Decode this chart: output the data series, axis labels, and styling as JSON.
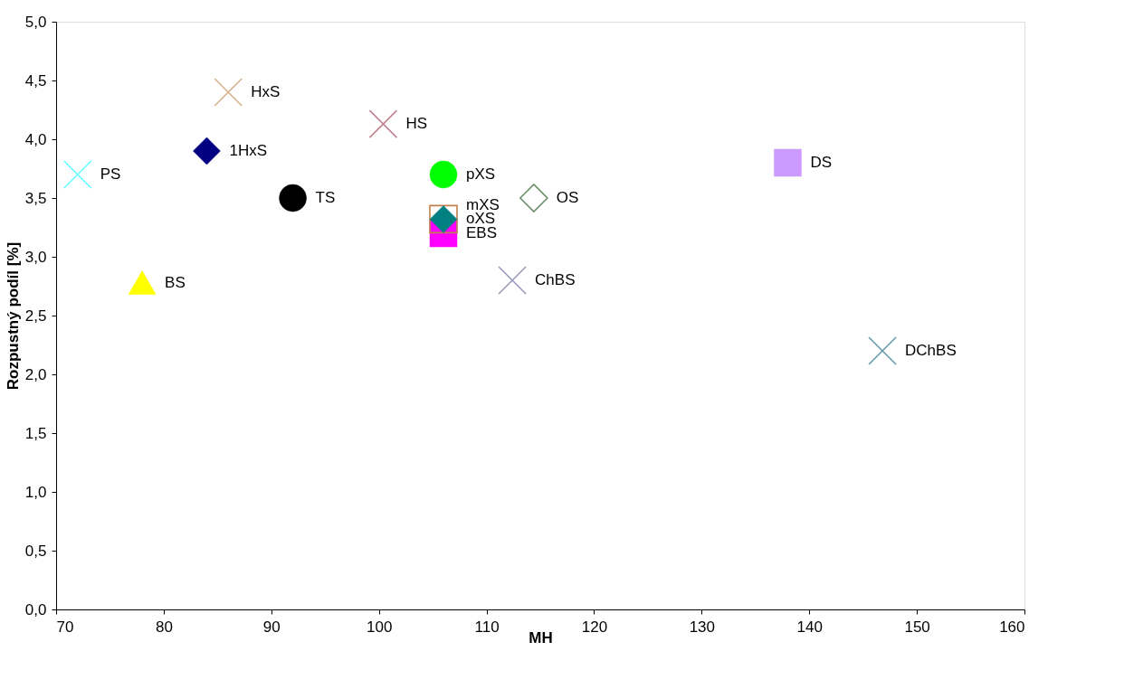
{
  "chart_data": {
    "type": "scatter",
    "xlabel": "MH",
    "ylabel": "Rozpustný  podíl  [%]",
    "xlim": [
      70,
      160
    ],
    "xticks": [
      70,
      80,
      90,
      100,
      110,
      120,
      130,
      140,
      150,
      160
    ],
    "ylim": [
      0,
      5
    ],
    "yticks": [
      {
        "value": 0,
        "label": "0,0"
      },
      {
        "value": 0.5,
        "label": "0,5"
      },
      {
        "value": 1,
        "label": "1,0"
      },
      {
        "value": 1.5,
        "label": "1,5"
      },
      {
        "value": 2,
        "label": "2,0"
      },
      {
        "value": 2.5,
        "label": "2,5"
      },
      {
        "value": 3,
        "label": "3,0"
      },
      {
        "value": 3.5,
        "label": "3,5"
      },
      {
        "value": 4,
        "label": "4,0"
      },
      {
        "value": 4.5,
        "label": "4,5"
      },
      {
        "value": 5,
        "label": "5,0"
      }
    ],
    "grid": false,
    "series": [
      {
        "name": "PS",
        "color": "#66ffff",
        "marker": "cross",
        "x": [
          72
        ],
        "values": [
          3.7
        ]
      },
      {
        "name": "HxS",
        "color": "#d9b38c",
        "marker": "cross",
        "x": [
          86
        ],
        "values": [
          4.4
        ]
      },
      {
        "name": "1HxS",
        "color": "#000080",
        "marker": "diamond",
        "x": [
          84
        ],
        "values": [
          3.9
        ]
      },
      {
        "name": "HS",
        "color": "#c08090",
        "marker": "cross",
        "x": [
          100.4
        ],
        "values": [
          4.13
        ]
      },
      {
        "name": "TS",
        "color": "#000000",
        "marker": "circle",
        "x": [
          92
        ],
        "values": [
          3.5
        ]
      },
      {
        "name": "BS",
        "color": "#ffff00",
        "marker": "triangle",
        "x": [
          78
        ],
        "values": [
          2.78
        ]
      },
      {
        "name": "pXS",
        "color": "#00ff00",
        "marker": "circle",
        "x": [
          106
        ],
        "values": [
          3.7
        ]
      },
      {
        "name": "EBS",
        "color": "#ff00ff",
        "marker": "square",
        "x": [
          106
        ],
        "values": [
          3.2
        ]
      },
      {
        "name": "oXS",
        "color": "#c0804d",
        "marker": "square-open",
        "x": [
          106
        ],
        "values": [
          3.32
        ]
      },
      {
        "name": "mXS",
        "color": "#008080",
        "marker": "diamond",
        "x": [
          106
        ],
        "values": [
          3.32
        ]
      },
      {
        "name": "OS",
        "color": "#6b8e6b",
        "marker": "diamond-open",
        "x": [
          114.4
        ],
        "values": [
          3.5
        ]
      },
      {
        "name": "ChBS",
        "color": "#9999bb",
        "marker": "cross",
        "x": [
          112.4
        ],
        "values": [
          2.8
        ]
      },
      {
        "name": "DS",
        "color": "#cc99ff",
        "marker": "square",
        "x": [
          138
        ],
        "values": [
          3.8
        ]
      },
      {
        "name": "DChBS",
        "color": "#6699aa",
        "marker": "cross",
        "x": [
          146.8
        ],
        "values": [
          2.2
        ]
      }
    ]
  }
}
